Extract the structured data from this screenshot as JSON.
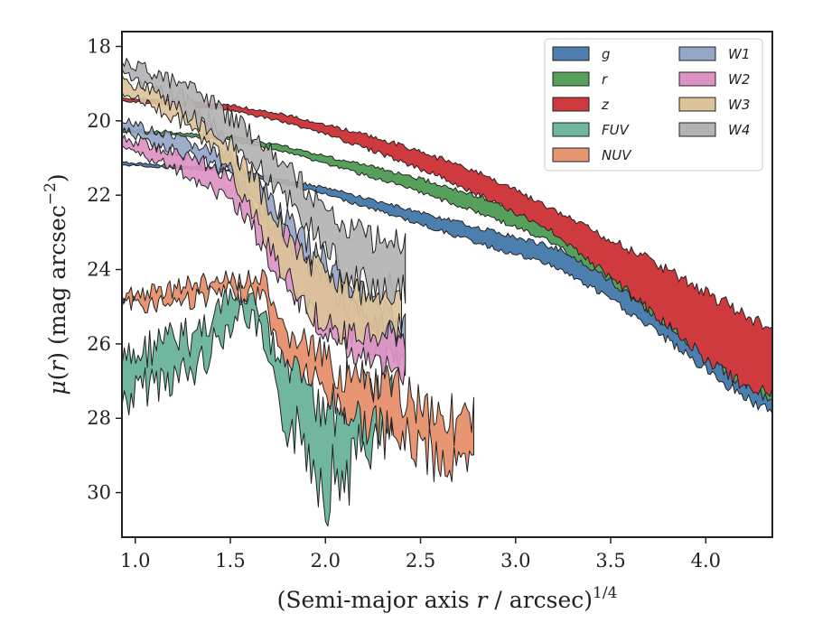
{
  "chart_data": {
    "type": "area",
    "xlabel": "(Semi-major axis r / arcsec)^1/4",
    "xlabel_parts": {
      "pre": "(Semi-major axis ",
      "var": "r",
      "mid": " / arcsec)",
      "sup": "1/4"
    },
    "ylabel": "μ(r) (mag arcsec^−2)",
    "ylabel_parts": {
      "mu": "μ",
      "open": "(",
      "var": "r",
      "close": ")",
      "unit": " (mag arcsec",
      "sup": "−2",
      "end": ")"
    },
    "xlim": [
      0.93,
      4.35
    ],
    "ylim": [
      31.2,
      17.6
    ],
    "y_inverted": true,
    "xticks": [
      1.0,
      1.5,
      2.0,
      2.5,
      3.0,
      3.5,
      4.0
    ],
    "xtick_labels": [
      "1.0",
      "1.5",
      "2.0",
      "2.5",
      "3.0",
      "3.5",
      "4.0"
    ],
    "yticks": [
      18,
      20,
      22,
      24,
      26,
      28,
      30
    ],
    "ytick_labels": [
      "18",
      "20",
      "22",
      "24",
      "26",
      "28",
      "30"
    ],
    "grid": false,
    "legend_position": "top-right",
    "legend_columns": 2,
    "series": [
      {
        "name": "g",
        "color": "#4c7fae",
        "points": [
          [
            0.93,
            21.12,
            21.18
          ],
          [
            1.2,
            21.2,
            21.27
          ],
          [
            1.5,
            21.3,
            21.38
          ],
          [
            1.8,
            21.6,
            21.72
          ],
          [
            2.0,
            21.8,
            21.98
          ],
          [
            2.3,
            22.2,
            22.45
          ],
          [
            2.6,
            22.6,
            22.95
          ],
          [
            2.9,
            23.0,
            23.45
          ],
          [
            3.2,
            23.4,
            23.9
          ],
          [
            3.5,
            24.0,
            24.8
          ],
          [
            3.8,
            24.8,
            25.9
          ],
          [
            4.0,
            25.4,
            26.7
          ],
          [
            4.2,
            25.9,
            27.4
          ],
          [
            4.35,
            26.2,
            27.9
          ]
        ]
      },
      {
        "name": "r",
        "color": "#57a05c",
        "points": [
          [
            0.93,
            20.22,
            20.3
          ],
          [
            1.2,
            20.32,
            20.4
          ],
          [
            1.5,
            20.42,
            20.52
          ],
          [
            1.8,
            20.7,
            20.85
          ],
          [
            2.0,
            20.95,
            21.15
          ],
          [
            2.3,
            21.3,
            21.6
          ],
          [
            2.6,
            21.7,
            22.1
          ],
          [
            2.9,
            22.2,
            22.65
          ],
          [
            3.2,
            22.8,
            23.3
          ],
          [
            3.5,
            23.5,
            24.3
          ],
          [
            3.8,
            24.3,
            25.5
          ],
          [
            4.0,
            24.9,
            26.3
          ],
          [
            4.2,
            25.5,
            27.1
          ],
          [
            4.35,
            25.9,
            27.5
          ]
        ]
      },
      {
        "name": "z",
        "color": "#cf3a3e",
        "points": [
          [
            0.93,
            19.38,
            19.46
          ],
          [
            1.2,
            19.48,
            19.58
          ],
          [
            1.5,
            19.58,
            19.72
          ],
          [
            1.8,
            19.85,
            20.05
          ],
          [
            2.0,
            20.1,
            20.35
          ],
          [
            2.3,
            20.5,
            20.9
          ],
          [
            2.6,
            21.0,
            21.5
          ],
          [
            2.9,
            21.6,
            22.2
          ],
          [
            3.2,
            22.4,
            23.0
          ],
          [
            3.5,
            23.2,
            24.2
          ],
          [
            3.8,
            24.0,
            25.5
          ],
          [
            4.0,
            24.6,
            26.4
          ],
          [
            4.2,
            25.2,
            27.1
          ],
          [
            4.35,
            25.6,
            27.3
          ]
        ]
      },
      {
        "name": "FUV",
        "color": "#71b7a0",
        "points": [
          [
            0.93,
            26.6,
            27.6
          ],
          [
            1.1,
            26.0,
            27.0
          ],
          [
            1.3,
            25.8,
            26.8
          ],
          [
            1.45,
            25.0,
            25.8
          ],
          [
            1.55,
            24.7,
            25.1
          ],
          [
            1.65,
            25.0,
            25.6
          ],
          [
            1.75,
            26.5,
            27.8
          ],
          [
            1.9,
            27.0,
            28.7
          ],
          [
            2.0,
            27.5,
            29.8
          ],
          [
            2.1,
            27.3,
            29.5
          ],
          [
            2.2,
            27.4,
            28.8
          ],
          [
            2.3,
            27.0,
            28.6
          ],
          [
            2.35,
            27.3,
            28.2
          ]
        ]
      },
      {
        "name": "NUV",
        "color": "#e79572",
        "points": [
          [
            0.93,
            24.7,
            25.0
          ],
          [
            1.1,
            24.6,
            24.9
          ],
          [
            1.3,
            24.4,
            24.8
          ],
          [
            1.5,
            24.3,
            24.6
          ],
          [
            1.68,
            24.3,
            24.7
          ],
          [
            1.75,
            25.6,
            26.2
          ],
          [
            1.9,
            26.0,
            26.8
          ],
          [
            2.1,
            26.9,
            27.8
          ],
          [
            2.3,
            27.2,
            28.4
          ],
          [
            2.5,
            27.5,
            28.8
          ],
          [
            2.7,
            28.1,
            29.4
          ],
          [
            2.78,
            28.1,
            29.5
          ]
        ]
      },
      {
        "name": "W1",
        "color": "#95a6c7",
        "points": [
          [
            0.93,
            20.0,
            20.25
          ],
          [
            1.1,
            20.3,
            20.6
          ],
          [
            1.3,
            20.6,
            20.95
          ],
          [
            1.5,
            21.0,
            21.45
          ],
          [
            1.6,
            21.4,
            22.0
          ],
          [
            1.7,
            22.0,
            23.0
          ],
          [
            1.8,
            22.7,
            23.9
          ],
          [
            1.9,
            23.3,
            24.6
          ],
          [
            2.0,
            23.8,
            25.2
          ],
          [
            2.1,
            24.2,
            25.6
          ],
          [
            2.2,
            24.7,
            25.9
          ],
          [
            2.3,
            25.1,
            26.3
          ],
          [
            2.42,
            25.5,
            26.7
          ]
        ]
      },
      {
        "name": "W2",
        "color": "#dd93c4",
        "points": [
          [
            0.93,
            20.45,
            20.75
          ],
          [
            1.1,
            20.7,
            21.05
          ],
          [
            1.3,
            21.0,
            21.5
          ],
          [
            1.5,
            21.5,
            22.1
          ],
          [
            1.6,
            21.9,
            22.7
          ],
          [
            1.7,
            22.6,
            23.6
          ],
          [
            1.8,
            23.2,
            24.4
          ],
          [
            1.9,
            23.8,
            25.1
          ],
          [
            2.0,
            24.3,
            25.7
          ],
          [
            2.1,
            24.8,
            26.0
          ],
          [
            2.2,
            25.3,
            26.4
          ],
          [
            2.3,
            25.6,
            26.6
          ],
          [
            2.42,
            25.9,
            26.8
          ]
        ]
      },
      {
        "name": "W3",
        "color": "#dcc39a",
        "points": [
          [
            0.93,
            18.9,
            19.3
          ],
          [
            1.1,
            19.2,
            19.65
          ],
          [
            1.25,
            19.4,
            20.0
          ],
          [
            1.4,
            20.0,
            20.7
          ],
          [
            1.5,
            20.6,
            21.4
          ],
          [
            1.6,
            21.4,
            22.4
          ],
          [
            1.7,
            22.2,
            23.3
          ],
          [
            1.8,
            23.0,
            24.2
          ],
          [
            1.9,
            23.7,
            25.0
          ],
          [
            2.0,
            24.2,
            25.5
          ],
          [
            2.1,
            24.5,
            25.8
          ],
          [
            2.2,
            24.6,
            25.8
          ],
          [
            2.3,
            24.6,
            25.7
          ],
          [
            2.4,
            24.2,
            25.5
          ]
        ]
      },
      {
        "name": "W4",
        "color": "#b3b3b3",
        "points": [
          [
            0.93,
            18.4,
            18.7
          ],
          [
            1.1,
            18.7,
            19.2
          ],
          [
            1.3,
            19.2,
            19.9
          ],
          [
            1.45,
            19.7,
            20.4
          ],
          [
            1.6,
            20.3,
            21.0
          ],
          [
            1.75,
            21.0,
            21.8
          ],
          [
            1.9,
            21.8,
            22.7
          ],
          [
            2.0,
            22.4,
            23.4
          ],
          [
            2.1,
            22.8,
            24.0
          ],
          [
            2.2,
            23.0,
            24.3
          ],
          [
            2.3,
            23.3,
            24.6
          ],
          [
            2.42,
            23.3,
            24.5
          ]
        ]
      }
    ]
  }
}
